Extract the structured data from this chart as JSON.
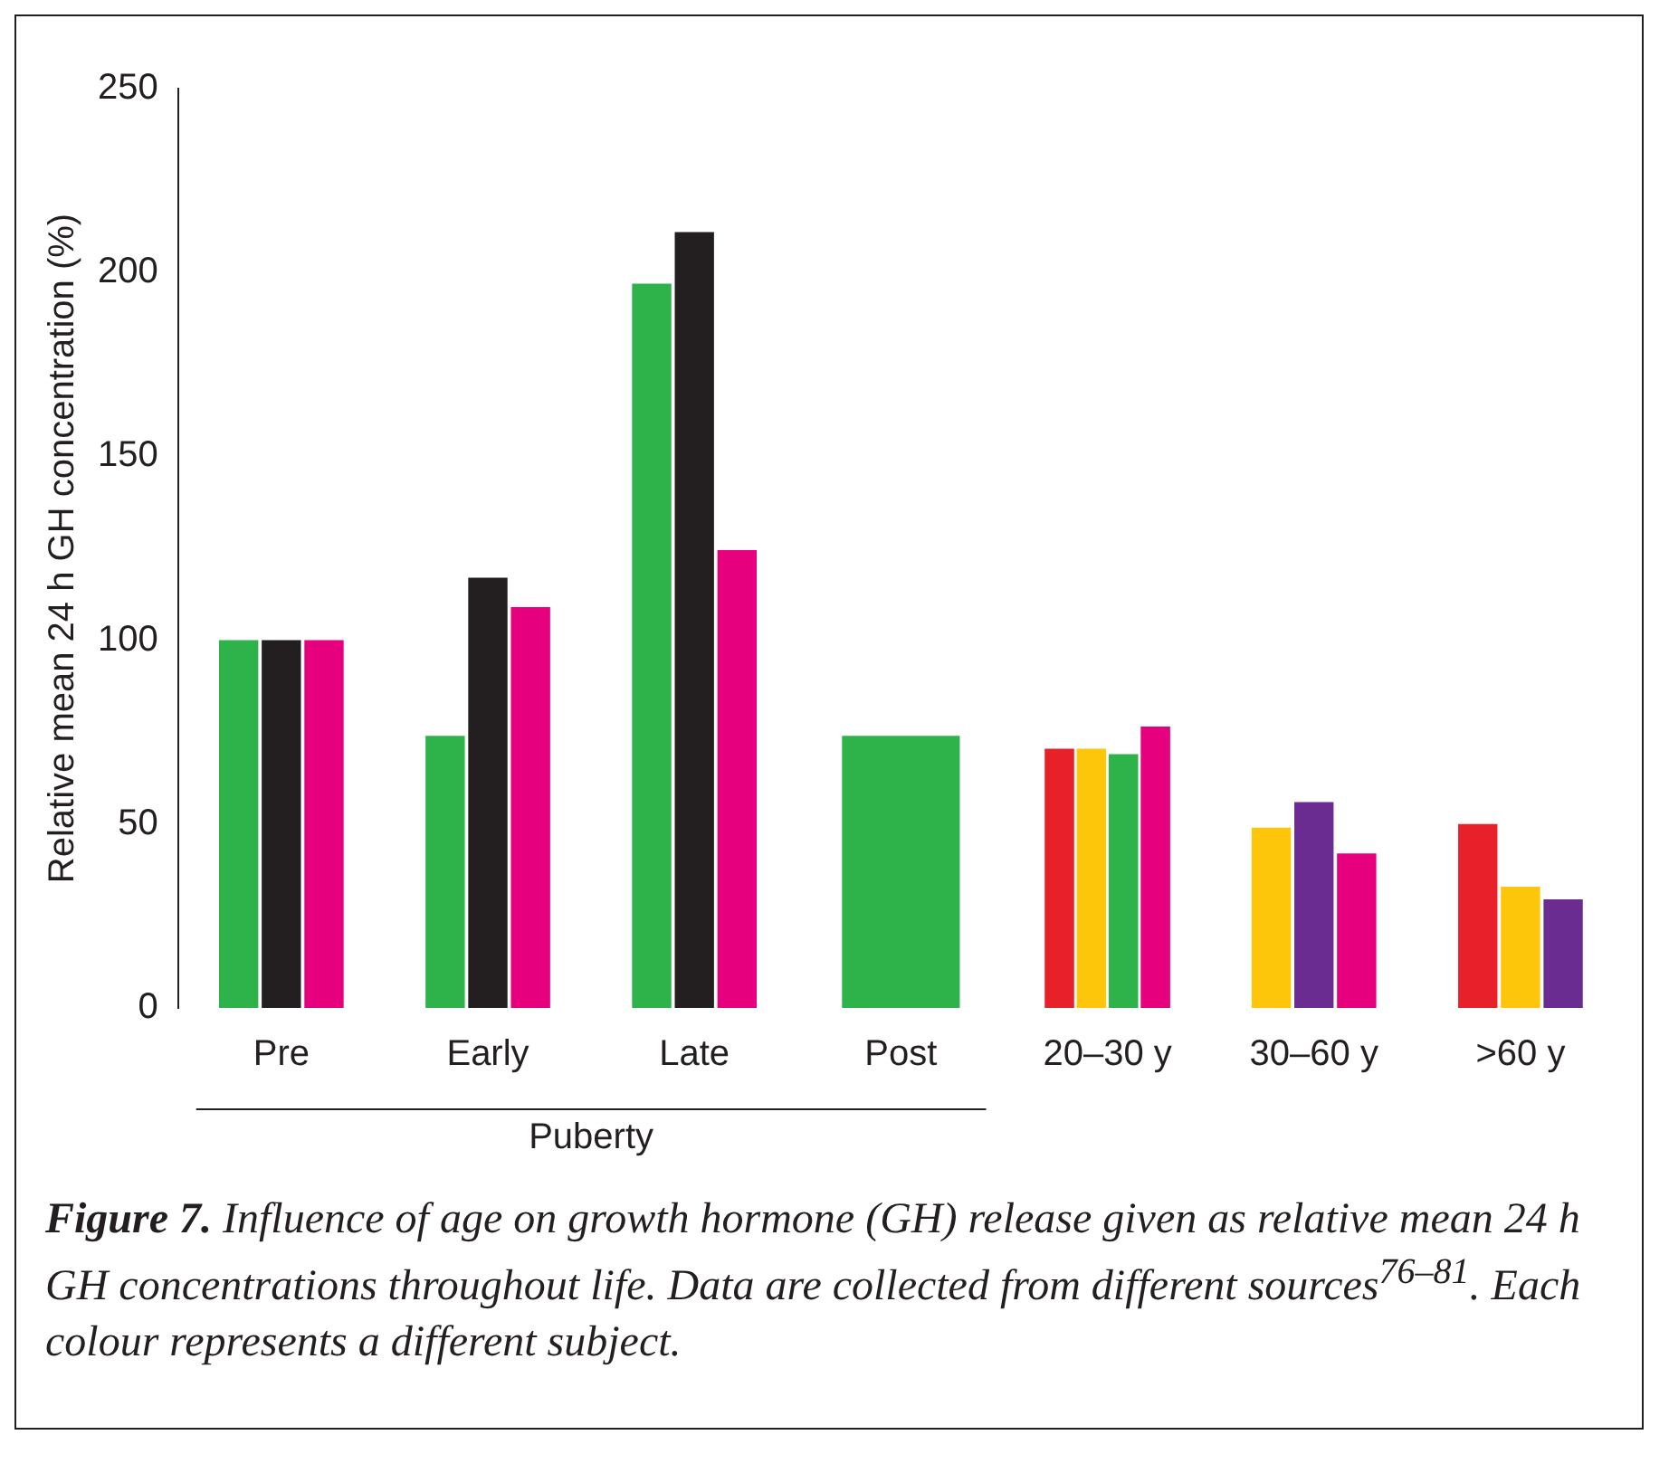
{
  "chart_data": {
    "type": "bar",
    "ylabel": "Relative mean 24 h GH concentration (%)",
    "categories": [
      "Pre",
      "Early",
      "Late",
      "Post",
      "20–30 y",
      "30–60 y",
      ">60 y"
    ],
    "series": [
      {
        "color": "#e8202a",
        "values": [
          null,
          null,
          null,
          null,
          70.5,
          null,
          50
        ]
      },
      {
        "color": "#fdc60a",
        "values": [
          null,
          null,
          null,
          null,
          70.5,
          49,
          33
        ]
      },
      {
        "color": "#2db34a",
        "values": [
          100,
          74,
          197,
          74,
          69,
          null,
          null
        ]
      },
      {
        "color": "#231f20",
        "values": [
          100,
          117,
          211,
          null,
          null,
          null,
          null
        ]
      },
      {
        "color": "#6b2c91",
        "values": [
          null,
          null,
          null,
          null,
          null,
          56,
          29.5
        ]
      },
      {
        "color": "#e6007e",
        "values": [
          100,
          109,
          124.5,
          null,
          76.5,
          42,
          null
        ]
      }
    ],
    "ylim": [
      0,
      250
    ],
    "yticks": [
      0,
      50,
      100,
      150,
      200,
      250
    ],
    "grid": false,
    "legend": false,
    "annotations": [
      {
        "text": "Puberty"
      },
      {
        "text": "Figure 7."
      },
      {
        "text": "Influence of age on growth hormone (GH) release given as relative mean 24 h GH concentrations throughout life. Data are collected from different sources$^{76–81}$. Each colour represents a different subject."
      }
    ]
  }
}
